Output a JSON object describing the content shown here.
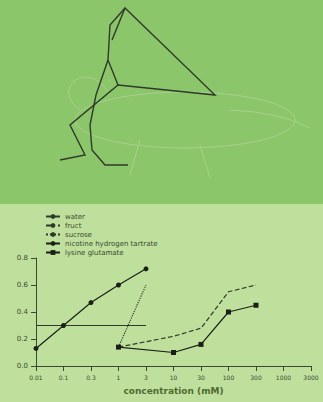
{
  "chart_data": {
    "type": "line",
    "x_label": "concentration (mM)",
    "categories": [
      "0.01",
      "0.1",
      "0.3",
      "1",
      "3",
      "10",
      "30",
      "100",
      "300",
      "1000",
      "3000"
    ],
    "ylim": [
      0,
      0.8
    ],
    "yticks": [
      {
        "value": 0,
        "label": "0.0"
      },
      0.2,
      0.4,
      0.6,
      0.8
    ],
    "legend": "upper left",
    "series": [
      {
        "name": "water",
        "color": "#2f3a2a",
        "line_style": "solid",
        "marker": "none",
        "values": [
          0.3,
          0.3,
          0.3,
          0.3,
          0.3,
          null,
          null,
          null,
          null,
          null,
          null
        ]
      },
      {
        "name": "fruct",
        "color": "#2f3a2a",
        "line_style": "dashed",
        "marker": "none",
        "values": [
          null,
          null,
          null,
          0.14,
          null,
          0.22,
          0.28,
          0.55,
          0.6,
          null,
          null
        ]
      },
      {
        "name": "sucrose",
        "color": "#2f3a2a",
        "line_style": "dotted",
        "marker": "none",
        "values": [
          null,
          null,
          null,
          0.14,
          0.6,
          null,
          null,
          null,
          null,
          null,
          null
        ]
      },
      {
        "name": "nicotine hydrogen tartrate",
        "color": "#1a1f18",
        "line_style": "solid",
        "marker": "circle",
        "values": [
          0.13,
          0.3,
          0.47,
          0.6,
          0.72,
          null,
          null,
          null,
          null,
          null,
          null
        ]
      },
      {
        "name": "lysine glutamate",
        "color": "#1a1f18",
        "line_style": "solid",
        "marker": "square",
        "values": [
          null,
          null,
          null,
          0.14,
          null,
          0.1,
          0.16,
          0.4,
          0.45,
          null,
          null
        ]
      }
    ]
  }
}
